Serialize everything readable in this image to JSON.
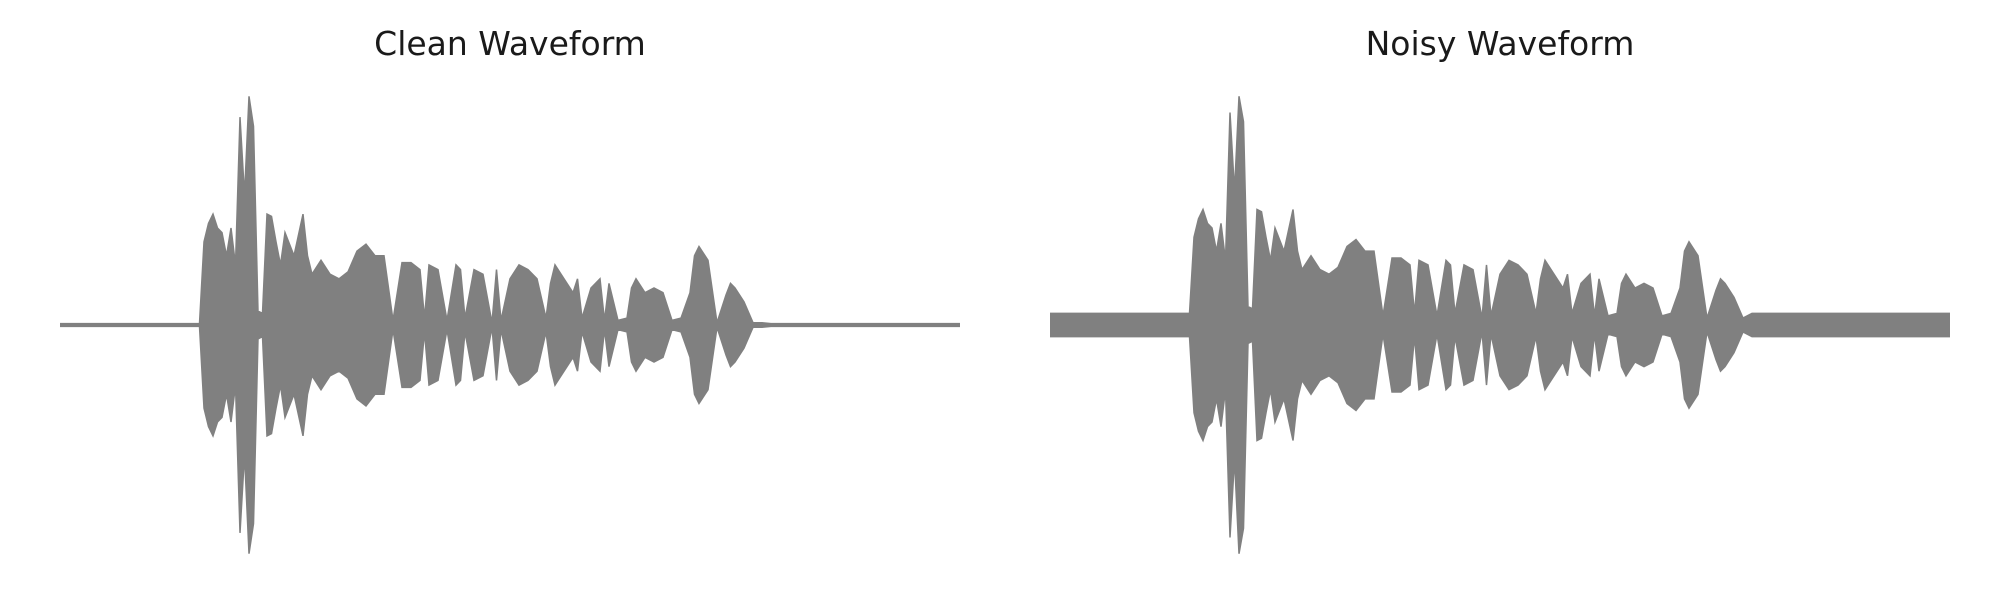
{
  "chart_data": [
    {
      "type": "area",
      "title": "Clean Waveform",
      "axes_visible": false,
      "color": "#808080",
      "ylim": [
        -1,
        1
      ],
      "t": [
        0.0,
        0.155,
        0.16,
        0.165,
        0.17,
        0.175,
        0.18,
        0.185,
        0.19,
        0.195,
        0.2,
        0.205,
        0.21,
        0.215,
        0.22,
        0.225,
        0.23,
        0.235,
        0.24,
        0.245,
        0.25,
        0.26,
        0.27,
        0.275,
        0.28,
        0.29,
        0.3,
        0.31,
        0.32,
        0.33,
        0.34,
        0.35,
        0.36,
        0.37,
        0.38,
        0.39,
        0.4,
        0.405,
        0.41,
        0.42,
        0.43,
        0.44,
        0.445,
        0.45,
        0.46,
        0.47,
        0.48,
        0.485,
        0.49,
        0.5,
        0.51,
        0.52,
        0.53,
        0.54,
        0.545,
        0.55,
        0.56,
        0.57,
        0.575,
        0.58,
        0.59,
        0.6,
        0.605,
        0.61,
        0.62,
        0.63,
        0.635,
        0.64,
        0.65,
        0.66,
        0.67,
        0.68,
        0.69,
        0.7,
        0.705,
        0.71,
        0.72,
        0.73,
        0.74,
        0.745,
        0.75,
        0.76,
        0.77,
        0.78,
        0.79,
        0.8,
        0.81,
        0.82,
        1.0
      ],
      "amplitude": [
        0.006,
        0.006,
        0.36,
        0.44,
        0.48,
        0.42,
        0.4,
        0.3,
        0.42,
        0.26,
        0.9,
        0.56,
        0.99,
        0.86,
        0.06,
        0.05,
        0.48,
        0.47,
        0.36,
        0.26,
        0.4,
        0.3,
        0.48,
        0.3,
        0.22,
        0.28,
        0.22,
        0.2,
        0.23,
        0.32,
        0.35,
        0.3,
        0.3,
        0.02,
        0.27,
        0.27,
        0.24,
        0.03,
        0.26,
        0.24,
        0.02,
        0.26,
        0.24,
        0.03,
        0.24,
        0.22,
        0.01,
        0.24,
        0.02,
        0.2,
        0.26,
        0.24,
        0.2,
        0.03,
        0.18,
        0.26,
        0.2,
        0.14,
        0.2,
        0.03,
        0.16,
        0.2,
        0.02,
        0.18,
        0.02,
        0.03,
        0.16,
        0.2,
        0.14,
        0.16,
        0.14,
        0.02,
        0.03,
        0.14,
        0.3,
        0.34,
        0.28,
        0.01,
        0.13,
        0.18,
        0.16,
        0.1,
        0.01,
        0.01,
        0.006,
        0.006,
        0.006,
        0.006,
        0.006
      ]
    },
    {
      "type": "area",
      "title": "Noisy Waveform",
      "axes_visible": false,
      "color": "#808080",
      "ylim": [
        -1,
        1
      ],
      "t": [
        0.0,
        0.155,
        0.16,
        0.165,
        0.17,
        0.175,
        0.18,
        0.185,
        0.19,
        0.195,
        0.2,
        0.205,
        0.21,
        0.215,
        0.22,
        0.225,
        0.23,
        0.235,
        0.24,
        0.245,
        0.25,
        0.26,
        0.27,
        0.275,
        0.28,
        0.29,
        0.3,
        0.31,
        0.32,
        0.33,
        0.34,
        0.35,
        0.36,
        0.37,
        0.38,
        0.39,
        0.4,
        0.405,
        0.41,
        0.42,
        0.43,
        0.44,
        0.445,
        0.45,
        0.46,
        0.47,
        0.48,
        0.485,
        0.49,
        0.5,
        0.51,
        0.52,
        0.53,
        0.54,
        0.545,
        0.55,
        0.56,
        0.57,
        0.575,
        0.58,
        0.59,
        0.6,
        0.605,
        0.61,
        0.62,
        0.63,
        0.635,
        0.64,
        0.65,
        0.66,
        0.67,
        0.68,
        0.69,
        0.7,
        0.705,
        0.71,
        0.72,
        0.73,
        0.74,
        0.745,
        0.75,
        0.76,
        0.77,
        0.78,
        0.79,
        0.8,
        0.81,
        0.82,
        1.0
      ],
      "amplitude": [
        0.05,
        0.05,
        0.38,
        0.46,
        0.5,
        0.44,
        0.42,
        0.32,
        0.44,
        0.28,
        0.92,
        0.58,
        0.99,
        0.88,
        0.08,
        0.07,
        0.5,
        0.49,
        0.38,
        0.28,
        0.42,
        0.32,
        0.5,
        0.32,
        0.24,
        0.3,
        0.24,
        0.22,
        0.25,
        0.34,
        0.37,
        0.32,
        0.32,
        0.04,
        0.29,
        0.29,
        0.26,
        0.05,
        0.28,
        0.26,
        0.04,
        0.28,
        0.26,
        0.05,
        0.26,
        0.24,
        0.03,
        0.26,
        0.04,
        0.22,
        0.28,
        0.26,
        0.22,
        0.05,
        0.2,
        0.28,
        0.22,
        0.16,
        0.22,
        0.05,
        0.18,
        0.22,
        0.04,
        0.2,
        0.04,
        0.05,
        0.18,
        0.22,
        0.16,
        0.18,
        0.16,
        0.04,
        0.05,
        0.16,
        0.32,
        0.36,
        0.3,
        0.03,
        0.15,
        0.2,
        0.18,
        0.12,
        0.03,
        0.05,
        0.05,
        0.05,
        0.05,
        0.05,
        0.05
      ]
    }
  ]
}
